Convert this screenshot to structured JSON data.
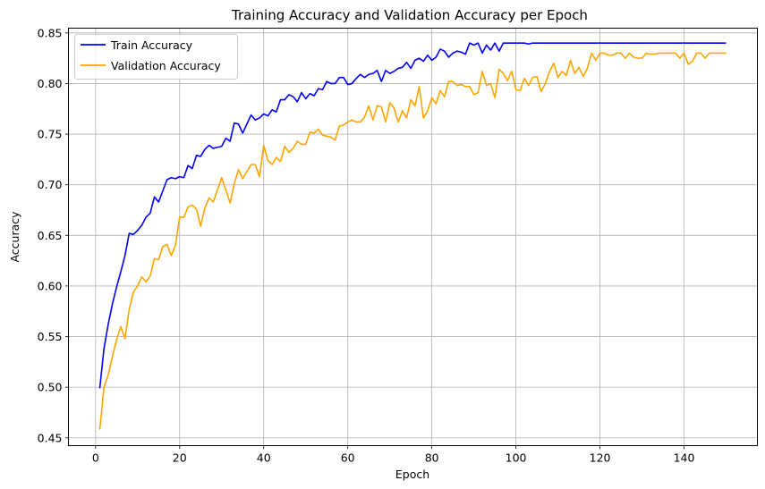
{
  "chart_data": {
    "type": "line",
    "title": "Training Accuracy and Validation Accuracy per Epoch",
    "xlabel": "Epoch",
    "ylabel": "Accuracy",
    "xlim": [
      -6.45,
      157.45
    ],
    "ylim": [
      0.4423,
      0.8547
    ],
    "xticks": [
      0,
      20,
      40,
      60,
      80,
      100,
      120,
      140
    ],
    "yticks": [
      0.45,
      0.5,
      0.55,
      0.6,
      0.65,
      0.7,
      0.75,
      0.8,
      0.85
    ],
    "ytick_labels": [
      "0.45",
      "0.50",
      "0.55",
      "0.60",
      "0.65",
      "0.70",
      "0.75",
      "0.80",
      "0.85"
    ],
    "grid": true,
    "legend_position": "top-left",
    "x": [
      1,
      2,
      3,
      4,
      5,
      6,
      7,
      8,
      9,
      10,
      11,
      12,
      13,
      14,
      15,
      16,
      17,
      18,
      19,
      20,
      21,
      22,
      23,
      24,
      25,
      26,
      27,
      28,
      29,
      30,
      31,
      32,
      33,
      34,
      35,
      36,
      37,
      38,
      39,
      40,
      41,
      42,
      43,
      44,
      45,
      46,
      47,
      48,
      49,
      50,
      51,
      52,
      53,
      54,
      55,
      56,
      57,
      58,
      59,
      60,
      61,
      62,
      63,
      64,
      65,
      66,
      67,
      68,
      69,
      70,
      71,
      72,
      73,
      74,
      75,
      76,
      77,
      78,
      79,
      80,
      81,
      82,
      83,
      84,
      85,
      86,
      87,
      88,
      89,
      90,
      91,
      92,
      93,
      94,
      95,
      96,
      97,
      98,
      99,
      100,
      101,
      102,
      103,
      104,
      105,
      106,
      107,
      108,
      109,
      110,
      111,
      112,
      113,
      114,
      115,
      116,
      117,
      118,
      119,
      120,
      121,
      122,
      123,
      124,
      125,
      126,
      127,
      128,
      129,
      130,
      131,
      132,
      133,
      134,
      135,
      136,
      137,
      138,
      139,
      140,
      141,
      142,
      143,
      144,
      145,
      146,
      147,
      148,
      149,
      150
    ],
    "series": [
      {
        "name": "Train Accuracy",
        "color": "#0000ff",
        "values": [
          0.499,
          0.538,
          0.562,
          0.582,
          0.599,
          0.614,
          0.63,
          0.652,
          0.651,
          0.655,
          0.66,
          0.668,
          0.672,
          0.688,
          0.683,
          0.694,
          0.705,
          0.707,
          0.706,
          0.708,
          0.707,
          0.719,
          0.716,
          0.729,
          0.728,
          0.735,
          0.739,
          0.736,
          0.737,
          0.738,
          0.746,
          0.743,
          0.761,
          0.76,
          0.751,
          0.76,
          0.769,
          0.764,
          0.766,
          0.77,
          0.768,
          0.774,
          0.772,
          0.784,
          0.784,
          0.789,
          0.787,
          0.782,
          0.791,
          0.785,
          0.79,
          0.788,
          0.795,
          0.794,
          0.802,
          0.8,
          0.8,
          0.806,
          0.806,
          0.799,
          0.8,
          0.805,
          0.809,
          0.806,
          0.809,
          0.81,
          0.813,
          0.802,
          0.813,
          0.81,
          0.812,
          0.815,
          0.816,
          0.821,
          0.815,
          0.823,
          0.825,
          0.822,
          0.828,
          0.823,
          0.826,
          0.834,
          0.832,
          0.826,
          0.83,
          0.832,
          0.831,
          0.829,
          0.84,
          0.838,
          0.84,
          0.83,
          0.838,
          0.833,
          0.84,
          0.832,
          0.84,
          0.84,
          0.84,
          0.84,
          0.84,
          0.84,
          0.839,
          0.84,
          0.84,
          0.84,
          0.84,
          0.84,
          0.84,
          0.84,
          0.84,
          0.84,
          0.84,
          0.84,
          0.84,
          0.84,
          0.84,
          0.84,
          0.84,
          0.84,
          0.84,
          0.84,
          0.84,
          0.84,
          0.84,
          0.84,
          0.84,
          0.84,
          0.84,
          0.84,
          0.84,
          0.84,
          0.84,
          0.84,
          0.84,
          0.84,
          0.84,
          0.84,
          0.84,
          0.84,
          0.84,
          0.84,
          0.84,
          0.84,
          0.84,
          0.84,
          0.84,
          0.84,
          0.84,
          0.84
        ]
      },
      {
        "name": "Validation Accuracy",
        "color": "#ffa500",
        "values": [
          0.458,
          0.5,
          0.512,
          0.53,
          0.547,
          0.56,
          0.548,
          0.577,
          0.594,
          0.6,
          0.609,
          0.604,
          0.61,
          0.627,
          0.626,
          0.639,
          0.641,
          0.63,
          0.64,
          0.668,
          0.668,
          0.678,
          0.68,
          0.676,
          0.659,
          0.677,
          0.687,
          0.683,
          0.695,
          0.707,
          0.695,
          0.682,
          0.701,
          0.715,
          0.706,
          0.713,
          0.72,
          0.72,
          0.708,
          0.739,
          0.724,
          0.72,
          0.727,
          0.723,
          0.738,
          0.732,
          0.736,
          0.743,
          0.74,
          0.74,
          0.752,
          0.751,
          0.755,
          0.749,
          0.748,
          0.747,
          0.744,
          0.758,
          0.759,
          0.762,
          0.764,
          0.762,
          0.762,
          0.767,
          0.778,
          0.764,
          0.778,
          0.777,
          0.762,
          0.781,
          0.776,
          0.762,
          0.773,
          0.766,
          0.784,
          0.778,
          0.797,
          0.766,
          0.773,
          0.786,
          0.78,
          0.793,
          0.787,
          0.802,
          0.802,
          0.798,
          0.799,
          0.797,
          0.797,
          0.789,
          0.791,
          0.812,
          0.798,
          0.8,
          0.786,
          0.814,
          0.81,
          0.803,
          0.812,
          0.794,
          0.793,
          0.805,
          0.798,
          0.806,
          0.807,
          0.792,
          0.8,
          0.812,
          0.82,
          0.806,
          0.812,
          0.808,
          0.823,
          0.81,
          0.816,
          0.807,
          0.815,
          0.83,
          0.823,
          0.83,
          0.83,
          0.828,
          0.828,
          0.83,
          0.83,
          0.825,
          0.83,
          0.826,
          0.825,
          0.825,
          0.83,
          0.829,
          0.829,
          0.83,
          0.83,
          0.83,
          0.83,
          0.83,
          0.825,
          0.83,
          0.819,
          0.822,
          0.83,
          0.83,
          0.825,
          0.83,
          0.83,
          0.83,
          0.83,
          0.83
        ]
      }
    ]
  }
}
